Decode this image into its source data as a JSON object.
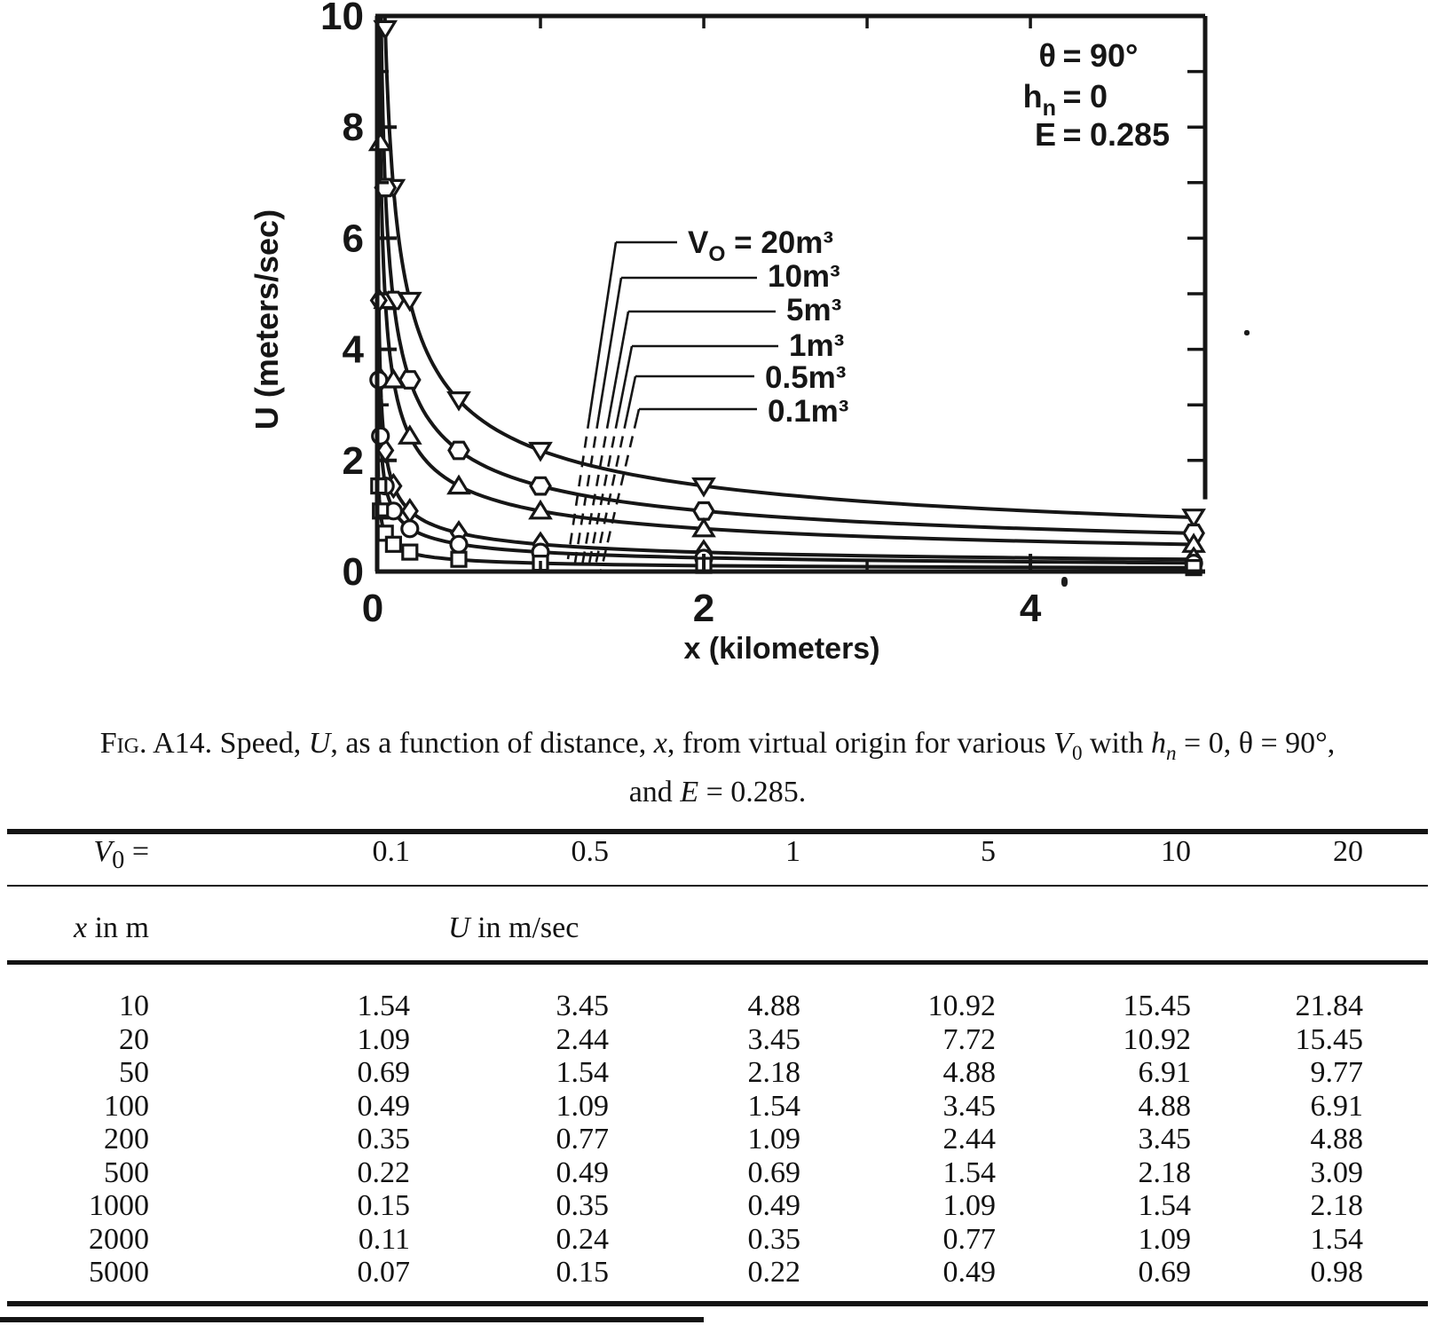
{
  "colors": {
    "ink": "#161616",
    "paper": "#ffffff"
  },
  "chart_data": {
    "type": "line",
    "title": "",
    "xlabel": "x (kilometers)",
    "ylabel": "U (meters/sec)",
    "xlim": [
      0,
      5
    ],
    "ylim": [
      0,
      10
    ],
    "x_major_tick_labels": [
      "0",
      "2",
      "4"
    ],
    "x_major_ticks": [
      0,
      2,
      4
    ],
    "x_minor_ticks": [
      1,
      3
    ],
    "top_ticks": [
      1,
      2,
      3,
      4
    ],
    "y_major_tick_labels": [
      "0",
      "2",
      "4",
      "6",
      "8",
      "10"
    ],
    "y_major_ticks": [
      0,
      2,
      4,
      6,
      8,
      10
    ],
    "y_minor_ticks": [
      1,
      3,
      5,
      7,
      9
    ],
    "right_ticks": [
      2,
      3,
      4,
      5,
      6,
      7,
      8,
      9
    ],
    "grid": false,
    "curve_model": "U = U(1 km) / sqrt(x in km)",
    "annotation_lines": [
      {
        "sym_segments": [
          {
            "t": "θ"
          }
        ],
        "value": "90°"
      },
      {
        "sym_segments": [
          {
            "t": "h"
          },
          {
            "t": "n",
            "sub": 1
          }
        ],
        "value": "0"
      },
      {
        "sym_segments": [
          {
            "t": "E"
          }
        ],
        "value": "0.285"
      }
    ],
    "legend": {
      "prefix_segments": [
        {
          "t": "V"
        },
        {
          "t": "O",
          "sub": 1
        },
        {
          "t": " = "
        }
      ],
      "entries": [
        {
          "label": "20m³",
          "marker": "triangle-down"
        },
        {
          "label": "10m³",
          "marker": "hexagon"
        },
        {
          "label": "5m³",
          "marker": "triangle-up"
        },
        {
          "label": "1m³",
          "marker": "diamond"
        },
        {
          "label": "0.5m³",
          "marker": "circle"
        },
        {
          "label": "0.1m³",
          "marker": "square"
        }
      ]
    },
    "x_km": [
      0.01,
      0.02,
      0.05,
      0.1,
      0.2,
      0.5,
      1,
      2,
      5
    ],
    "series": [
      {
        "v0": "20m³",
        "marker": "triangle-down",
        "U": [
          21.84,
          15.45,
          9.77,
          6.91,
          4.88,
          3.09,
          2.18,
          1.54,
          0.98
        ]
      },
      {
        "v0": "10m³",
        "marker": "hexagon",
        "U": [
          15.45,
          10.92,
          6.91,
          4.88,
          3.45,
          2.18,
          1.54,
          1.09,
          0.69
        ]
      },
      {
        "v0": "5m³",
        "marker": "triangle-up",
        "U": [
          10.92,
          7.72,
          4.88,
          3.45,
          2.44,
          1.54,
          1.09,
          0.77,
          0.49
        ]
      },
      {
        "v0": "1m³",
        "marker": "diamond",
        "U": [
          4.88,
          3.45,
          2.18,
          1.54,
          1.09,
          0.69,
          0.49,
          0.35,
          0.22
        ]
      },
      {
        "v0": "0.5m³",
        "marker": "circle",
        "U": [
          3.45,
          2.44,
          1.54,
          1.09,
          0.77,
          0.49,
          0.35,
          0.24,
          0.15
        ]
      },
      {
        "v0": "0.1m³",
        "marker": "square",
        "U": [
          1.54,
          1.09,
          0.69,
          0.49,
          0.35,
          0.22,
          0.15,
          0.11,
          0.07
        ]
      }
    ]
  },
  "caption": {
    "line1_segments": [
      {
        "t": "Fig.",
        "sc": 1
      },
      {
        "t": " A14.  Speed, "
      },
      {
        "t": "U",
        "i": 1
      },
      {
        "t": ", as a function of distance, "
      },
      {
        "t": "x",
        "i": 1
      },
      {
        "t": ", from virtual origin for various "
      },
      {
        "t": "V",
        "i": 1
      },
      {
        "t": "0",
        "sub": 1
      },
      {
        "t": " with "
      },
      {
        "t": "h",
        "i": 1
      },
      {
        "t": "n",
        "sub": 1,
        "i": 1
      },
      {
        "t": " = 0, θ = 90°,"
      }
    ],
    "line2_segments": [
      {
        "t": "and "
      },
      {
        "t": "E",
        "i": 1
      },
      {
        "t": " = 0.285."
      }
    ]
  },
  "table": {
    "v0_header_segments": [
      {
        "t": "V",
        "i": 1
      },
      {
        "t": "0",
        "sub": 1
      },
      {
        "t": " ="
      }
    ],
    "v0_values": [
      "0.1",
      "0.5",
      "1",
      "5",
      "10",
      "20"
    ],
    "x_header_segments": [
      {
        "t": "x",
        "i": 1
      },
      {
        "t": " in m"
      }
    ],
    "u_header_segments": [
      {
        "t": "U",
        "i": 1
      },
      {
        "t": " in m/sec"
      }
    ],
    "rows": [
      {
        "x": "10",
        "u": [
          "1.54",
          "3.45",
          "4.88",
          "10.92",
          "15.45",
          "21.84"
        ]
      },
      {
        "x": "20",
        "u": [
          "1.09",
          "2.44",
          "3.45",
          "7.72",
          "10.92",
          "15.45"
        ]
      },
      {
        "x": "50",
        "u": [
          "0.69",
          "1.54",
          "2.18",
          "4.88",
          "6.91",
          "9.77"
        ]
      },
      {
        "x": "100",
        "u": [
          "0.49",
          "1.09",
          "1.54",
          "3.45",
          "4.88",
          "6.91"
        ]
      },
      {
        "x": "200",
        "u": [
          "0.35",
          "0.77",
          "1.09",
          "2.44",
          "3.45",
          "4.88"
        ]
      },
      {
        "x": "500",
        "u": [
          "0.22",
          "0.49",
          "0.69",
          "1.54",
          "2.18",
          "3.09"
        ]
      },
      {
        "x": "1000",
        "u": [
          "0.15",
          "0.35",
          "0.49",
          "1.09",
          "1.54",
          "2.18"
        ]
      },
      {
        "x": "2000",
        "u": [
          "0.11",
          "0.24",
          "0.35",
          "0.77",
          "1.09",
          "1.54"
        ]
      },
      {
        "x": "5000",
        "u": [
          "0.07",
          "0.15",
          "0.22",
          "0.49",
          "0.69",
          "0.98"
        ]
      }
    ]
  }
}
